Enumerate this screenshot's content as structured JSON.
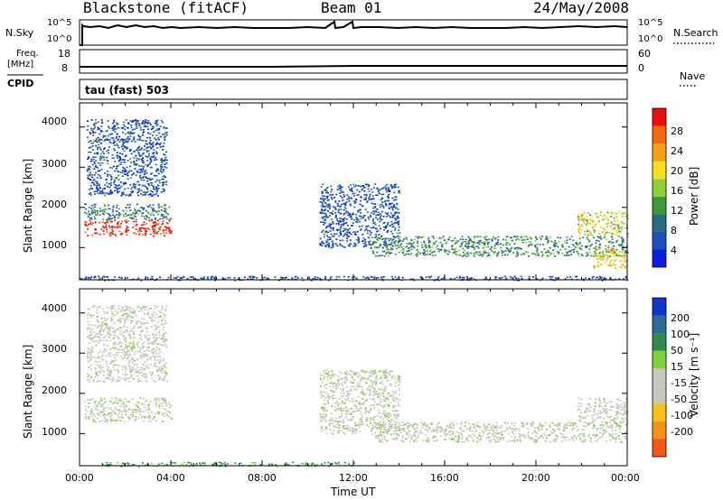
{
  "header": {
    "station": "Blackstone (fitACF)",
    "beam": "Beam 01",
    "date": "24/May/2008"
  },
  "top_panels": {
    "nsky_label": "N.Sky",
    "nsky_ticks": [
      "10^5",
      "10^0"
    ],
    "nsearch_label": "N.Search",
    "nsearch_ticks": [
      "10^5",
      "10^0"
    ],
    "freq_label": "Freq.",
    "freq_unit": "[MHz]",
    "freq_ticks": [
      "18",
      "8"
    ],
    "nave_label": "Nave",
    "nave_ticks": [
      "60",
      "0"
    ],
    "cpid_label": "CPID",
    "cpid_value": "tau (fast) 503"
  },
  "colors": {
    "power_scale": [
      "#0a1fe0",
      "#1f4fc0",
      "#2a6a80",
      "#3f9a3a",
      "#8fd03a",
      "#f4e020",
      "#f5a018",
      "#f26812",
      "#e81010"
    ],
    "velocity_scale": [
      "#1233c8",
      "#2a6a9a",
      "#2f8a50",
      "#7fd03a",
      "#c8c8bf",
      "#c8c8bf",
      "#f5c018",
      "#f59018",
      "#f25818",
      "#e81010"
    ]
  },
  "chart_data": [
    {
      "type": "heatmap",
      "name": "power",
      "ylabel": "Slant Range [km]",
      "yticks": [
        "1000",
        "2000",
        "3000",
        "4000"
      ],
      "ylim": [
        200,
        4600
      ],
      "xlim": [
        0,
        24
      ],
      "xticks": [
        "00:00",
        "04:00",
        "08:00",
        "12:00",
        "16:00",
        "20:00",
        "00:00"
      ],
      "colorbar": {
        "label": "Power [dB]",
        "ticks": [
          "4",
          "8",
          "12",
          "16",
          "20",
          "24",
          "28"
        ],
        "range": [
          0,
          32
        ]
      },
      "regions": [
        {
          "t": [
            0.2,
            4.0
          ],
          "r": [
            1300,
            1700
          ],
          "level": 30
        },
        {
          "t": [
            0.2,
            4.0
          ],
          "r": [
            1700,
            2100
          ],
          "level": 10
        },
        {
          "t": [
            0.3,
            3.8
          ],
          "r": [
            2300,
            4200
          ],
          "level": 6
        },
        {
          "t": [
            0.0,
            24.0
          ],
          "r": [
            200,
            300
          ],
          "level": 5
        },
        {
          "t": [
            10.5,
            14.0
          ],
          "r": [
            1000,
            2600
          ],
          "level": 6
        },
        {
          "t": [
            12.8,
            24.0
          ],
          "r": [
            800,
            1300
          ],
          "level": 11
        },
        {
          "t": [
            21.8,
            24.0
          ],
          "r": [
            1300,
            1900
          ],
          "level": 18
        },
        {
          "t": [
            22.5,
            24.0
          ],
          "r": [
            500,
            1000
          ],
          "level": 20
        }
      ]
    },
    {
      "type": "heatmap",
      "name": "velocity",
      "ylabel": "Slant Range [km]",
      "yticks": [
        "1000",
        "2000",
        "3000",
        "4000"
      ],
      "ylim": [
        200,
        4600
      ],
      "xlim": [
        0,
        24
      ],
      "xticks": [
        "00:00",
        "04:00",
        "08:00",
        "12:00",
        "16:00",
        "20:00",
        "00:00"
      ],
      "xlabel": "Time UT",
      "colorbar": {
        "label": "Velocity [m s⁻¹]",
        "ticks": [
          "200",
          "100",
          "50",
          "15",
          "-15",
          "-50",
          "-100",
          "-200"
        ],
        "range": [
          -250,
          250
        ]
      },
      "regions": [
        {
          "t": [
            0.2,
            4.0
          ],
          "r": [
            1300,
            1900
          ],
          "velocity": 0
        },
        {
          "t": [
            0.3,
            3.8
          ],
          "r": [
            2300,
            4200
          ],
          "velocity": -5
        },
        {
          "t": [
            1.0,
            12.0
          ],
          "r": [
            200,
            300
          ],
          "velocity": 40
        },
        {
          "t": [
            10.5,
            14.0
          ],
          "r": [
            1000,
            2600
          ],
          "velocity": 0
        },
        {
          "t": [
            12.8,
            24.0
          ],
          "r": [
            800,
            1300
          ],
          "velocity": 0
        },
        {
          "t": [
            21.8,
            24.0
          ],
          "r": [
            1300,
            1900
          ],
          "velocity": -5
        }
      ]
    }
  ]
}
